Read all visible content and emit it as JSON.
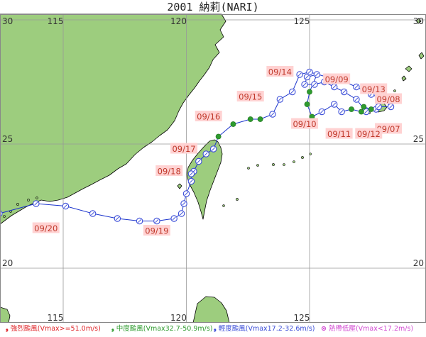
{
  "title": "2001  納莉(NARI)",
  "map": {
    "lon_range": [
      110,
      132
    ],
    "lat_range": [
      17,
      30
    ],
    "latitude_labels": {
      "left": [
        "30",
        "25",
        "20"
      ],
      "right": [
        "30",
        "25",
        "20"
      ]
    },
    "longitude_labels": {
      "top": [
        "115",
        "120",
        "125"
      ],
      "bottom": [
        "115",
        "120",
        "125"
      ]
    },
    "colors": {
      "sea": "#ffffff",
      "land": "#9dcd7e",
      "coast": "#000000",
      "grid": "#999999",
      "track_line": "#1a33cc",
      "moderate": "#2e9b2e",
      "mild": "#3b4dd8",
      "date_label_bg": "#ffd2d2",
      "date_label_text": "#c0392b",
      "strong": "#e0272b",
      "tropical_depression": "#d24bd2"
    }
  },
  "date_labels": [
    {
      "text": "09/14",
      "lon": 123.8,
      "lat": 27.9
    },
    {
      "text": "09/09",
      "lon": 126.1,
      "lat": 27.6
    },
    {
      "text": "09/13",
      "lon": 127.6,
      "lat": 27.2
    },
    {
      "text": "09/15",
      "lon": 122.6,
      "lat": 26.9
    },
    {
      "text": "09/08",
      "lon": 128.2,
      "lat": 26.8
    },
    {
      "text": "09/16",
      "lon": 120.9,
      "lat": 26.1
    },
    {
      "text": "09/10",
      "lon": 124.8,
      "lat": 25.8
    },
    {
      "text": "09/07",
      "lon": 128.2,
      "lat": 25.6
    },
    {
      "text": "09/11",
      "lon": 126.2,
      "lat": 25.4
    },
    {
      "text": "09/12",
      "lon": 127.4,
      "lat": 25.4
    },
    {
      "text": "09/17",
      "lon": 119.9,
      "lat": 24.8
    },
    {
      "text": "09/18",
      "lon": 119.3,
      "lat": 23.9
    },
    {
      "text": "09/20",
      "lon": 114.3,
      "lat": 21.6
    },
    {
      "text": "09/19",
      "lon": 118.8,
      "lat": 21.5
    }
  ],
  "track": [
    {
      "lon": 127.7,
      "lat": 26.4,
      "type": "mild"
    },
    {
      "lon": 127.3,
      "lat": 26.3,
      "type": "mild"
    },
    {
      "lon": 126.9,
      "lat": 26.8,
      "type": "mild"
    },
    {
      "lon": 126.4,
      "lat": 27.1,
      "type": "mild"
    },
    {
      "lon": 126.0,
      "lat": 27.3,
      "type": "mild"
    },
    {
      "lon": 125.6,
      "lat": 27.5,
      "type": "mild"
    },
    {
      "lon": 125.2,
      "lat": 27.4,
      "type": "mild"
    },
    {
      "lon": 124.8,
      "lat": 27.4,
      "type": "mild"
    },
    {
      "lon": 124.9,
      "lat": 27.7,
      "type": "mild"
    },
    {
      "lon": 125.3,
      "lat": 27.8,
      "type": "mild"
    },
    {
      "lon": 125.0,
      "lat": 27.1,
      "type": "moderate"
    },
    {
      "lon": 124.9,
      "lat": 26.6,
      "type": "moderate"
    },
    {
      "lon": 125.1,
      "lat": 26.1,
      "type": "moderate"
    },
    {
      "lon": 125.5,
      "lat": 26.3,
      "type": "mild"
    },
    {
      "lon": 126.0,
      "lat": 26.6,
      "type": "mild"
    },
    {
      "lon": 126.3,
      "lat": 26.3,
      "type": "mild"
    },
    {
      "lon": 126.7,
      "lat": 26.4,
      "type": "moderate"
    },
    {
      "lon": 127.1,
      "lat": 26.3,
      "type": "moderate"
    },
    {
      "lon": 127.2,
      "lat": 26.5,
      "type": "moderate"
    },
    {
      "lon": 127.5,
      "lat": 26.4,
      "type": "moderate"
    },
    {
      "lon": 127.8,
      "lat": 26.5,
      "type": "mild"
    },
    {
      "lon": 128.3,
      "lat": 26.5,
      "type": "mild"
    },
    {
      "lon": 128.0,
      "lat": 26.8,
      "type": "mild"
    },
    {
      "lon": 127.5,
      "lat": 27.0,
      "type": "mild"
    },
    {
      "lon": 126.9,
      "lat": 27.3,
      "type": "mild"
    },
    {
      "lon": 126.2,
      "lat": 27.6,
      "type": "mild"
    },
    {
      "lon": 125.7,
      "lat": 27.7,
      "type": "mild"
    },
    {
      "lon": 125.0,
      "lat": 27.9,
      "type": "mild"
    },
    {
      "lon": 124.6,
      "lat": 27.8,
      "type": "mild"
    },
    {
      "lon": 124.3,
      "lat": 27.1,
      "type": "mild"
    },
    {
      "lon": 123.8,
      "lat": 26.8,
      "type": "mild"
    },
    {
      "lon": 123.5,
      "lat": 26.2,
      "type": "mild"
    },
    {
      "lon": 123.0,
      "lat": 26.0,
      "type": "moderate"
    },
    {
      "lon": 122.6,
      "lat": 26.0,
      "type": "moderate"
    },
    {
      "lon": 121.9,
      "lat": 25.8,
      "type": "moderate"
    },
    {
      "lon": 121.3,
      "lat": 25.3,
      "type": "moderate"
    },
    {
      "lon": 121.1,
      "lat": 24.8,
      "type": "mild"
    },
    {
      "lon": 120.8,
      "lat": 24.6,
      "type": "mild"
    },
    {
      "lon": 120.5,
      "lat": 24.3,
      "type": "mild"
    },
    {
      "lon": 120.3,
      "lat": 23.9,
      "type": "mild"
    },
    {
      "lon": 120.2,
      "lat": 23.8,
      "type": "mild"
    },
    {
      "lon": 120.2,
      "lat": 23.5,
      "type": "mild"
    },
    {
      "lon": 120.0,
      "lat": 23.0,
      "type": "mild"
    },
    {
      "lon": 119.9,
      "lat": 22.6,
      "type": "mild"
    },
    {
      "lon": 119.8,
      "lat": 22.2,
      "type": "mild"
    },
    {
      "lon": 119.5,
      "lat": 22.0,
      "type": "mild"
    },
    {
      "lon": 118.8,
      "lat": 21.9,
      "type": "mild"
    },
    {
      "lon": 118.1,
      "lat": 21.9,
      "type": "mild"
    },
    {
      "lon": 117.2,
      "lat": 22.0,
      "type": "mild"
    },
    {
      "lon": 116.2,
      "lat": 22.2,
      "type": "mild"
    },
    {
      "lon": 115.1,
      "lat": 22.5,
      "type": "mild"
    },
    {
      "lon": 113.9,
      "lat": 22.6,
      "type": "mild"
    },
    {
      "lon": 112.4,
      "lat": 22.2,
      "type": "mild"
    },
    {
      "lon": 110.8,
      "lat": 22.0,
      "type": "mild"
    }
  ],
  "legend": [
    {
      "symbol": "❟",
      "label": "強烈颱風(Vmax>=51.0m/s)",
      "color": "#e0272b",
      "icon": "strong-typhoon-icon"
    },
    {
      "symbol": "❟",
      "label": "中度颱風(Vmax32.7-50.9m/s)",
      "color": "#2e9b2e",
      "icon": "moderate-typhoon-icon"
    },
    {
      "symbol": "❟",
      "label": "輕度颱風(Vmax17.2-32.6m/s)",
      "color": "#3b4dd8",
      "icon": "mild-typhoon-icon"
    },
    {
      "symbol": "⊗",
      "label": "熱帶低壓(Vmax<17.2m/s)",
      "color": "#d24bd2",
      "icon": "tropical-depression-icon"
    }
  ]
}
